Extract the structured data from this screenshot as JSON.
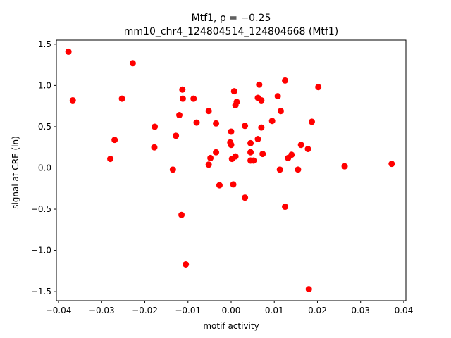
{
  "chart_data": {
    "type": "scatter",
    "title_line1": "Mtf1, ρ = −0.25",
    "title_line2": "mm10_chr4_124804514_124804668 (Mtf1)",
    "xlabel": "motif activity",
    "ylabel": "signal at CRE (ln)",
    "xlim": [
      -0.0405,
      0.0405
    ],
    "ylim": [
      -1.61,
      1.55
    ],
    "xticks": [
      -0.04,
      -0.03,
      -0.02,
      -0.01,
      0.0,
      0.01,
      0.02,
      0.03,
      0.04
    ],
    "xtick_labels": [
      "−0.04",
      "−0.03",
      "−0.02",
      "−0.01",
      "0.00",
      "0.01",
      "0.02",
      "0.03",
      "0.04"
    ],
    "yticks": [
      -1.5,
      -1.0,
      -0.5,
      0.0,
      0.5,
      1.0,
      1.5
    ],
    "ytick_labels": [
      "−1.5",
      "−1.0",
      "−0.5",
      "0.0",
      "0.5",
      "1.0",
      "1.5"
    ],
    "grid": false,
    "marker_color": "#ff0000",
    "points": [
      {
        "x": -0.0377,
        "y": 1.41
      },
      {
        "x": -0.0367,
        "y": 0.82
      },
      {
        "x": -0.0253,
        "y": 0.84
      },
      {
        "x": -0.0228,
        "y": 1.27
      },
      {
        "x": -0.027,
        "y": 0.34
      },
      {
        "x": -0.028,
        "y": 0.11
      },
      {
        "x": -0.0177,
        "y": 0.5
      },
      {
        "x": -0.0178,
        "y": 0.25
      },
      {
        "x": -0.0135,
        "y": -0.02
      },
      {
        "x": -0.0128,
        "y": 0.39
      },
      {
        "x": -0.012,
        "y": 0.64
      },
      {
        "x": -0.0113,
        "y": 0.95
      },
      {
        "x": -0.0112,
        "y": 0.84
      },
      {
        "x": -0.0087,
        "y": 0.84
      },
      {
        "x": -0.008,
        "y": 0.55
      },
      {
        "x": -0.0115,
        "y": -0.57
      },
      {
        "x": -0.0105,
        "y": -1.17
      },
      {
        "x": -0.0052,
        "y": 0.69
      },
      {
        "x": -0.0052,
        "y": 0.04
      },
      {
        "x": -0.0048,
        "y": 0.12
      },
      {
        "x": -0.0035,
        "y": 0.54
      },
      {
        "x": -0.0035,
        "y": 0.19
      },
      {
        "x": -0.0027,
        "y": -0.21
      },
      {
        "x": -0.0002,
        "y": 0.31
      },
      {
        "x": 0.0,
        "y": 0.28
      },
      {
        "x": 0.0,
        "y": 0.44
      },
      {
        "x": 0.0002,
        "y": 0.11
      },
      {
        "x": 0.0007,
        "y": 0.93
      },
      {
        "x": 0.001,
        "y": 0.76
      },
      {
        "x": 0.0013,
        "y": 0.8
      },
      {
        "x": 0.001,
        "y": 0.14
      },
      {
        "x": 0.0005,
        "y": -0.2
      },
      {
        "x": 0.0032,
        "y": 0.51
      },
      {
        "x": 0.0032,
        "y": -0.36
      },
      {
        "x": 0.0045,
        "y": 0.3
      },
      {
        "x": 0.0045,
        "y": 0.19
      },
      {
        "x": 0.0045,
        "y": 0.09
      },
      {
        "x": 0.0052,
        "y": 0.09
      },
      {
        "x": 0.0062,
        "y": 0.85
      },
      {
        "x": 0.0065,
        "y": 1.01
      },
      {
        "x": 0.007,
        "y": 0.82
      },
      {
        "x": 0.0062,
        "y": 0.35
      },
      {
        "x": 0.007,
        "y": 0.49
      },
      {
        "x": 0.0073,
        "y": 0.17
      },
      {
        "x": 0.0095,
        "y": 0.57
      },
      {
        "x": 0.0108,
        "y": 0.87
      },
      {
        "x": 0.0115,
        "y": 0.69
      },
      {
        "x": 0.0113,
        "y": -0.02
      },
      {
        "x": 0.0125,
        "y": 1.06
      },
      {
        "x": 0.0125,
        "y": -0.47
      },
      {
        "x": 0.0132,
        "y": 0.12
      },
      {
        "x": 0.014,
        "y": 0.16
      },
      {
        "x": 0.0155,
        "y": -0.02
      },
      {
        "x": 0.0162,
        "y": 0.28
      },
      {
        "x": 0.0178,
        "y": 0.23
      },
      {
        "x": 0.0187,
        "y": 0.56
      },
      {
        "x": 0.018,
        "y": -1.47
      },
      {
        "x": 0.0202,
        "y": 0.98
      },
      {
        "x": 0.0263,
        "y": 0.02
      },
      {
        "x": 0.0372,
        "y": 0.05
      }
    ]
  }
}
